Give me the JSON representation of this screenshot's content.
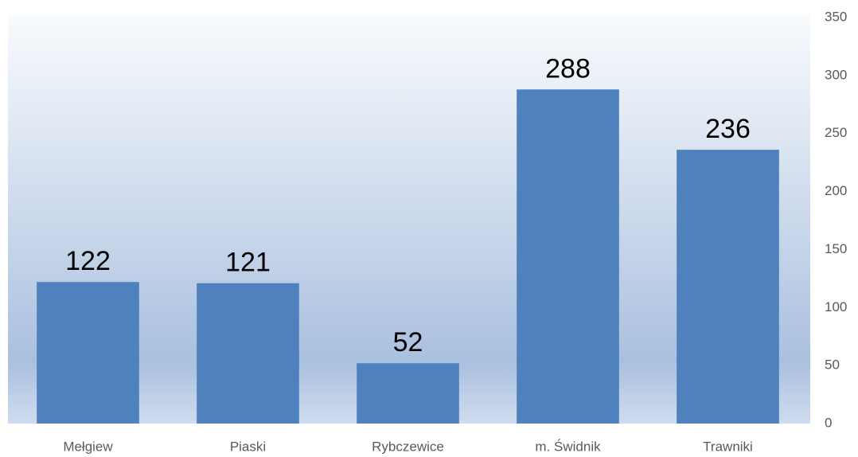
{
  "chart_data": {
    "type": "bar",
    "categories": [
      "Mełgiew",
      "Piaski",
      "Rybczewice",
      "m. Świdnik",
      "Trawniki"
    ],
    "values": [
      122,
      121,
      52,
      288,
      236
    ],
    "color": "#4f81bd",
    "ylim": [
      0,
      350
    ],
    "yticks": [
      0,
      50,
      100,
      150,
      200,
      250,
      300,
      350
    ],
    "y_axis_side": "right",
    "grid": false
  }
}
